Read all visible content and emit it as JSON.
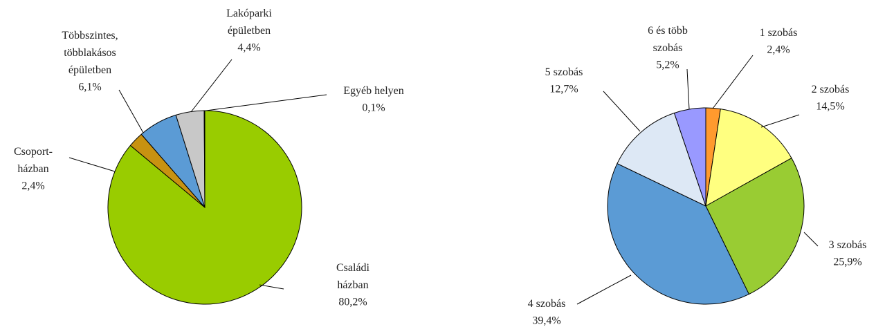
{
  "chart_data": [
    {
      "type": "pie",
      "categories": [
        "Családi\nházban",
        "Csoport-\nházban",
        "Többszintes,\ntöbblakásos\népületben",
        "Lakóparki\népületben",
        "Egyéb helyen"
      ],
      "values": [
        80.2,
        2.4,
        6.1,
        4.4,
        0.1
      ],
      "value_labels": [
        "80,2%",
        "2,4%",
        "6,1%",
        "4,4%",
        "0,1%"
      ],
      "colors": [
        "#99cc00",
        "#c89211",
        "#5b9bd5",
        "#c8c8c8",
        "#ffffff"
      ]
    },
    {
      "type": "pie",
      "categories": [
        "1 szobás",
        "2 szobás",
        "3 szobás",
        "4 szobás",
        "5 szobás",
        "6 és több\nszobás"
      ],
      "values": [
        2.4,
        14.5,
        25.9,
        39.4,
        12.7,
        5.2
      ],
      "value_labels": [
        "2,4%",
        "14,5%",
        "25,9%",
        "39,4%",
        "12,7%",
        "5,2%"
      ],
      "colors": [
        "#ff9a2e",
        "#ffff80",
        "#99cc33",
        "#5b9bd5",
        "#dde8f5",
        "#9999ff"
      ]
    }
  ]
}
